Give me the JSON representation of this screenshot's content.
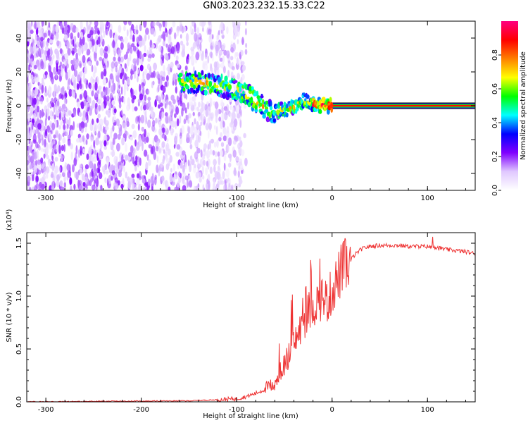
{
  "title": "GN03.2023.232.15.33.C22",
  "chart_data": [
    {
      "type": "heatmap",
      "xlabel": "Height of straight line (km)",
      "ylabel": "Frequency (Hz)",
      "xlim": [
        -320,
        150
      ],
      "ylim": [
        -50,
        50
      ],
      "xticks": [
        -300,
        -200,
        -100,
        0,
        100
      ],
      "yticks": [
        -40,
        -20,
        0,
        20,
        40
      ],
      "colorbar": {
        "label": "Normalized spectral amplitude",
        "range": [
          0.0,
          1.0
        ],
        "ticks": [
          0.0,
          0.2,
          0.4,
          0.6,
          0.8
        ],
        "colors": [
          "#ffffff",
          "#e0c8ff",
          "#8000ff",
          "#0000ff",
          "#00ffff",
          "#00ff00",
          "#ffff00",
          "#ff8000",
          "#ff0000",
          "#ff0080"
        ]
      },
      "ridge": {
        "x": [
          -160,
          -140,
          -130,
          -120,
          -110,
          -100,
          -90,
          -80,
          -70,
          -60,
          -50,
          -40,
          -30,
          -20,
          -10,
          0,
          150
        ],
        "y": [
          14,
          14,
          13,
          12,
          11,
          9,
          7,
          3,
          -2,
          -4,
          -2,
          -1,
          3,
          1,
          0,
          0,
          0
        ]
      },
      "noise_region_x": [
        -320,
        -110
      ],
      "tone_frequency": 0
    },
    {
      "type": "line",
      "xlabel": "Height of straight line (km)",
      "ylabel": "SNR (10 * v/v)",
      "multiplier_label": "(x10⁴)",
      "xlim": [
        -320,
        150
      ],
      "ylim": [
        0,
        1.6
      ],
      "xticks": [
        -300,
        -200,
        -100,
        0,
        100
      ],
      "yticks": [
        "0.0",
        "0.5",
        "1.0",
        "1.5"
      ],
      "color": "#ee3333",
      "series": [
        {
          "x": [
            -320,
            -150,
            -120,
            -100,
            -90,
            -80,
            -70,
            -60,
            -50,
            -45,
            -40,
            -35,
            -30,
            -25,
            -20,
            -15,
            -10,
            -5,
            0,
            5,
            10,
            15,
            20,
            25,
            30,
            35,
            40,
            50,
            60,
            70,
            80,
            90,
            100,
            110,
            120,
            130,
            140,
            150
          ],
          "values": [
            0.0,
            0.01,
            0.02,
            0.03,
            0.05,
            0.08,
            0.12,
            0.18,
            0.35,
            0.45,
            0.55,
            0.65,
            0.75,
            0.85,
            0.9,
            0.95,
            1.0,
            0.95,
            1.05,
            1.15,
            1.25,
            1.3,
            1.35,
            1.4,
            1.44,
            1.46,
            1.47,
            1.48,
            1.48,
            1.48,
            1.47,
            1.47,
            1.47,
            1.46,
            1.44,
            1.43,
            1.42,
            1.4
          ]
        }
      ]
    }
  ]
}
